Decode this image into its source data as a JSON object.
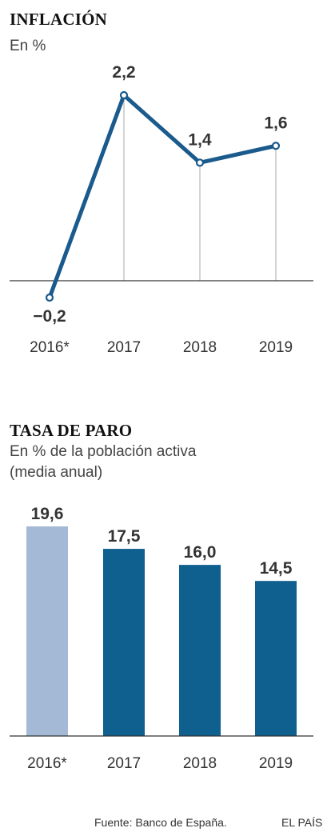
{
  "chart_data": [
    {
      "type": "line",
      "title": "INFLACIÓN",
      "subtitle": "En %",
      "categories": [
        "2016*",
        "2017",
        "2018",
        "2019"
      ],
      "series": [
        {
          "values": [
            -0.2,
            2.2,
            1.4,
            1.6
          ]
        }
      ],
      "value_labels": [
        "−0,2",
        "2,2",
        "1,4",
        "1,6"
      ],
      "ylim": [
        -0.2,
        2.2
      ],
      "grid": false,
      "colors": {
        "line": "#1a5a8c",
        "baseline": "#333333",
        "dropline": "#aaaaaa"
      }
    },
    {
      "type": "bar",
      "title": "TASA DE PARO",
      "subtitle_lines": [
        "En % de la población activa",
        "(media anual)"
      ],
      "categories": [
        "2016*",
        "2017",
        "2018",
        "2019"
      ],
      "values": [
        19.6,
        17.5,
        16.0,
        14.5
      ],
      "value_labels": [
        "19,6",
        "17,5",
        "16,0",
        "14,5"
      ],
      "ylim": [
        0,
        19.6
      ],
      "grid": false,
      "colors": {
        "bars": [
          "#a3b9d5",
          "#0f5f8f",
          "#0f5f8f",
          "#0f5f8f"
        ],
        "baseline": "#333333"
      }
    }
  ],
  "footer": {
    "source": "Fuente: Banco de España.",
    "brand": "EL PAÍS"
  }
}
